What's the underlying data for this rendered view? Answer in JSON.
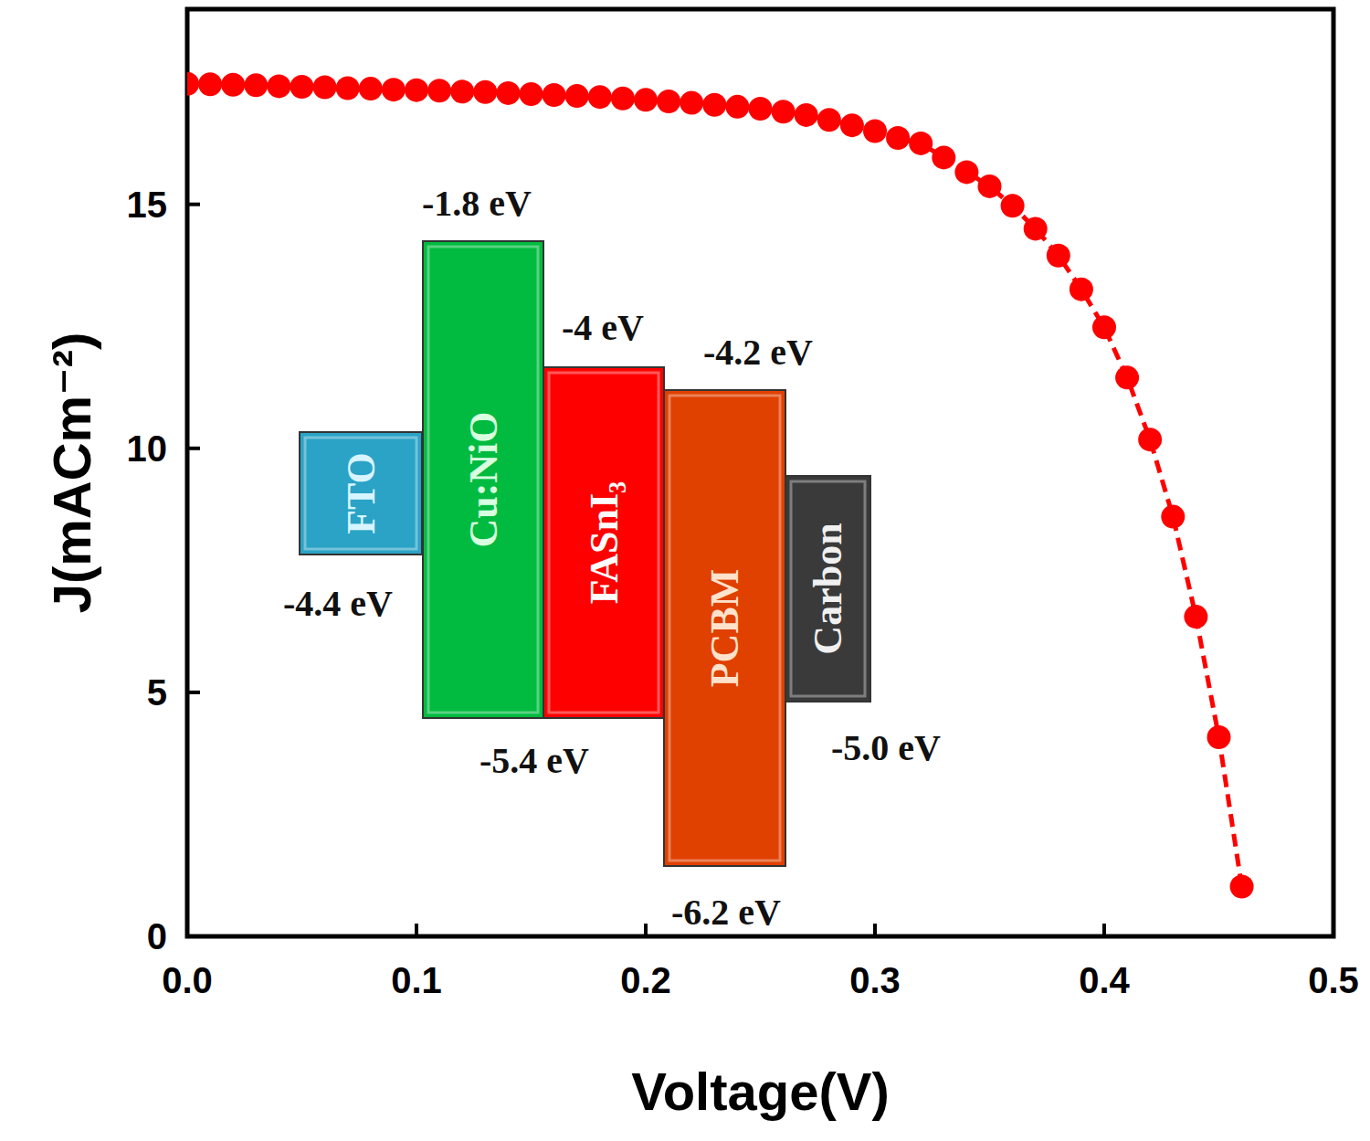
{
  "chart_data": {
    "type": "line",
    "x_label": "Voltage(V)",
    "y_label": "J(mACm⁻²)",
    "color": "#ff0000",
    "marker": "circle",
    "line_style": "dashed",
    "x": [
      0.0,
      0.01,
      0.02,
      0.03,
      0.04,
      0.05,
      0.06,
      0.07,
      0.08,
      0.09,
      0.1,
      0.11,
      0.12,
      0.13,
      0.14,
      0.15,
      0.16,
      0.17,
      0.18,
      0.19,
      0.2,
      0.21,
      0.22,
      0.23,
      0.24,
      0.25,
      0.26,
      0.27,
      0.28,
      0.29,
      0.3,
      0.31,
      0.32,
      0.33,
      0.34,
      0.35,
      0.36,
      0.37,
      0.38,
      0.39,
      0.4,
      0.41,
      0.42,
      0.43,
      0.44,
      0.45,
      0.46
    ],
    "values": [
      17.47,
      17.46,
      17.45,
      17.44,
      17.42,
      17.41,
      17.4,
      17.38,
      17.37,
      17.35,
      17.34,
      17.33,
      17.31,
      17.3,
      17.28,
      17.26,
      17.24,
      17.22,
      17.2,
      17.17,
      17.14,
      17.11,
      17.08,
      17.04,
      17.0,
      16.96,
      16.9,
      16.83,
      16.73,
      16.62,
      16.5,
      16.36,
      16.25,
      15.96,
      15.66,
      15.37,
      14.97,
      14.5,
      13.95,
      13.26,
      12.48,
      11.45,
      10.18,
      8.6,
      6.55,
      4.08,
      1.02
    ],
    "xlim": [
      0,
      0.5
    ],
    "ylim": [
      0,
      19
    ],
    "xticks": [
      {
        "value": 0,
        "label": "0.0"
      },
      0.1,
      0.2,
      0.3,
      0.4,
      0.5
    ],
    "yticks": [
      0,
      5,
      10,
      15
    ],
    "band_diagram": {
      "layers": [
        {
          "name": "FTO",
          "color": "#2aa3c6",
          "bottom": "-4.4 eV"
        },
        {
          "name": "Cu:NiO",
          "color": "#00bb3f",
          "top": "-1.8 eV",
          "bottom": "-5.4 eV"
        },
        {
          "name": "FASnI₃",
          "color": "#ff0000",
          "top": "-4 eV"
        },
        {
          "name": "PCBM",
          "color": "#e04000",
          "top": "-4.2 eV",
          "bottom": "-6.2 eV"
        },
        {
          "name": "Carbon",
          "color": "#3a3a3a",
          "bottom": "-5.0 eV"
        }
      ]
    }
  }
}
